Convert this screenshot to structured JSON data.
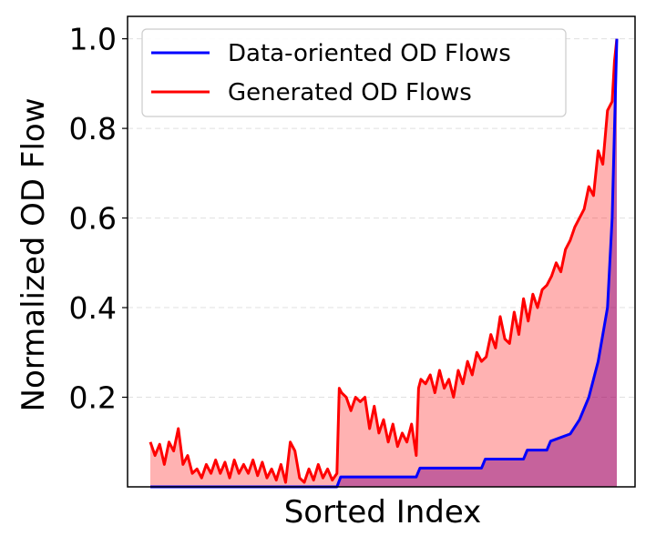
{
  "chart_data": {
    "type": "area",
    "title": "",
    "xlabel": "Sorted Index",
    "ylabel": "Normalized OD Flow",
    "ylim": [
      0.0,
      1.05
    ],
    "yticks": [
      {
        "value": 0.2,
        "label": "0.2"
      },
      {
        "value": 0.4,
        "label": "0.4"
      },
      {
        "value": 0.6,
        "label": "0.6"
      },
      {
        "value": 0.8,
        "label": "0.8"
      },
      {
        "value": 1.0,
        "label": "1.0"
      }
    ],
    "xticks_shown": false,
    "grid": {
      "y": true,
      "style": "dashed"
    },
    "legend_position": "top-left",
    "series": [
      {
        "name": "Data-oriented OD Flows",
        "color": "#0000ff",
        "fill_color": "#800080",
        "x": [
          0,
          40,
          40.8,
          57,
          57.8,
          71,
          71.8,
          80,
          80.8,
          85,
          85.8,
          90,
          92,
          94,
          96,
          98,
          99,
          100
        ],
        "values": [
          0.0,
          0.0,
          0.022,
          0.022,
          0.042,
          0.042,
          0.062,
          0.062,
          0.082,
          0.082,
          0.102,
          0.118,
          0.15,
          0.2,
          0.28,
          0.4,
          0.6,
          1.0
        ]
      },
      {
        "name": "Generated OD Flows",
        "color": "#ff0000",
        "fill_color": "#ff0000",
        "x": [
          0,
          1,
          2,
          3,
          4,
          5,
          6,
          7,
          8,
          9,
          10,
          11,
          12,
          13,
          14,
          15,
          16,
          17,
          18,
          19,
          20,
          21,
          22,
          23,
          24,
          25,
          26,
          27,
          28,
          29,
          30,
          31,
          32,
          33,
          34,
          35,
          36,
          37,
          38,
          39,
          40,
          40.5,
          41,
          42,
          43,
          44,
          45,
          46,
          47,
          48,
          49,
          50,
          51,
          52,
          53,
          54,
          55,
          56,
          57,
          57.5,
          58,
          59,
          60,
          61,
          62,
          63,
          64,
          65,
          66,
          67,
          68,
          69,
          70,
          71,
          72,
          73,
          74,
          75,
          76,
          77,
          78,
          79,
          80,
          81,
          82,
          83,
          84,
          85,
          86,
          87,
          88,
          89,
          90,
          91,
          92,
          93,
          94,
          95,
          96,
          97,
          98,
          99,
          99.5,
          100
        ],
        "values": [
          0.1,
          0.07,
          0.095,
          0.05,
          0.1,
          0.08,
          0.13,
          0.05,
          0.07,
          0.03,
          0.04,
          0.02,
          0.05,
          0.03,
          0.06,
          0.03,
          0.055,
          0.02,
          0.06,
          0.03,
          0.05,
          0.03,
          0.06,
          0.025,
          0.055,
          0.02,
          0.04,
          0.015,
          0.05,
          0.01,
          0.1,
          0.08,
          0.02,
          0.01,
          0.04,
          0.015,
          0.05,
          0.02,
          0.04,
          0.015,
          0.03,
          0.22,
          0.21,
          0.2,
          0.17,
          0.2,
          0.19,
          0.2,
          0.13,
          0.18,
          0.12,
          0.15,
          0.1,
          0.14,
          0.09,
          0.12,
          0.1,
          0.14,
          0.07,
          0.22,
          0.24,
          0.23,
          0.25,
          0.21,
          0.26,
          0.22,
          0.24,
          0.2,
          0.26,
          0.23,
          0.28,
          0.25,
          0.3,
          0.28,
          0.29,
          0.34,
          0.31,
          0.38,
          0.33,
          0.32,
          0.39,
          0.34,
          0.42,
          0.37,
          0.43,
          0.4,
          0.44,
          0.45,
          0.47,
          0.5,
          0.48,
          0.53,
          0.55,
          0.58,
          0.6,
          0.62,
          0.67,
          0.65,
          0.75,
          0.72,
          0.84,
          0.86,
          0.95,
          1.0
        ]
      }
    ]
  }
}
